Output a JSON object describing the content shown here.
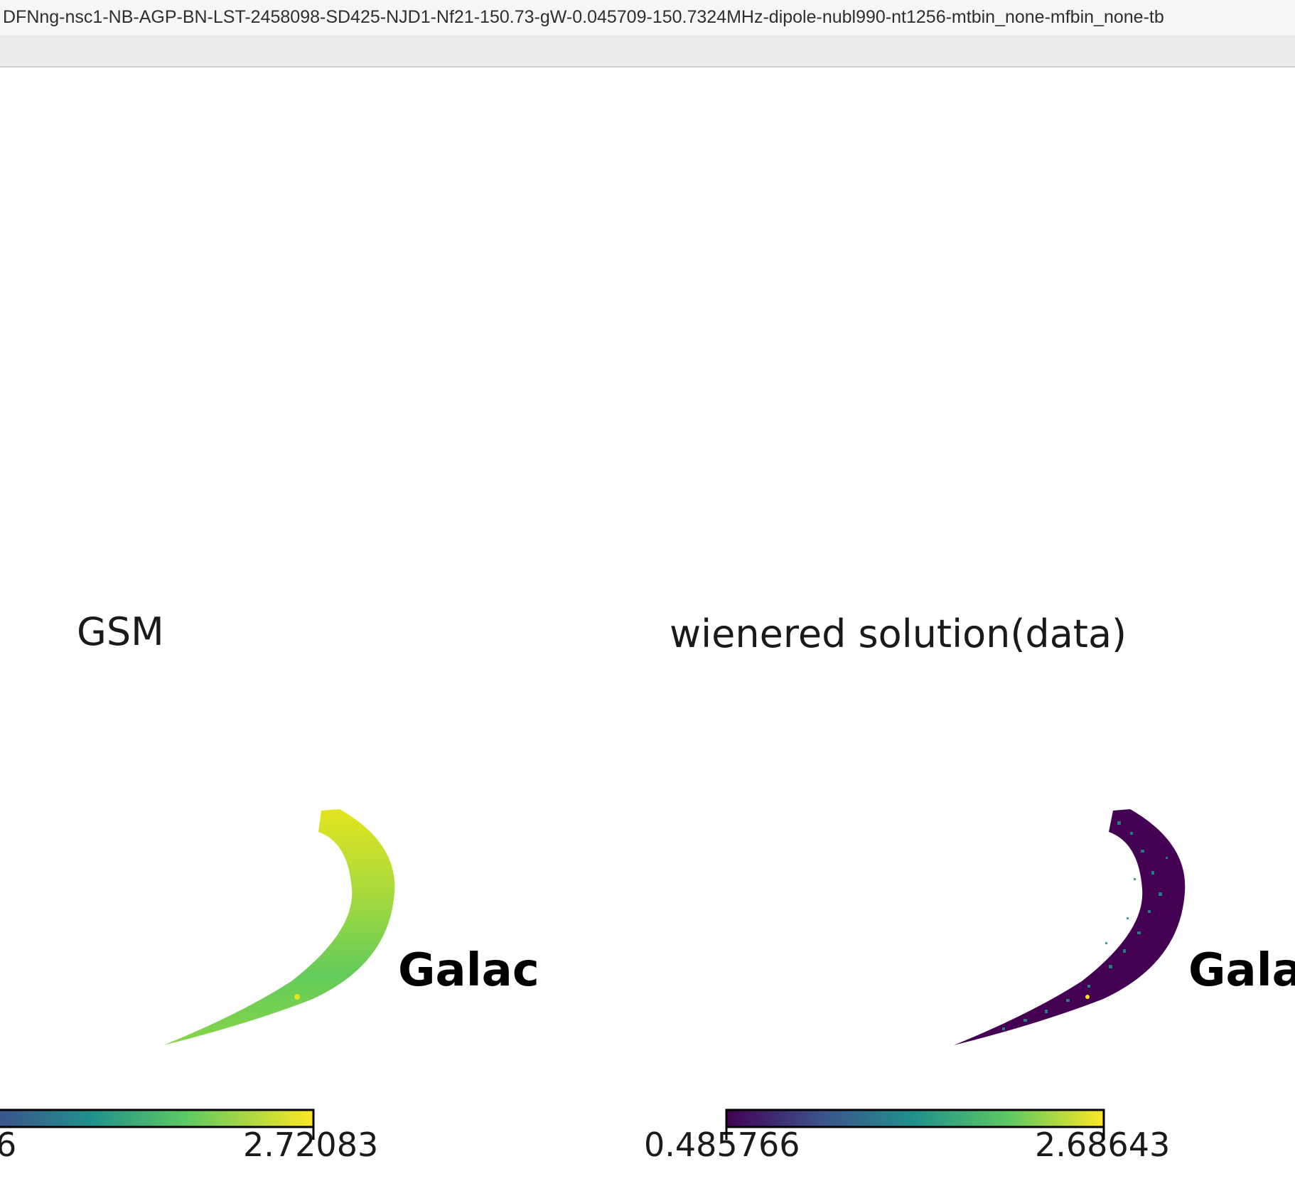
{
  "window": {
    "title": "DFNng-nsc1-NB-AGP-BN-LST-2458098-SD425-NJD1-Nf21-150.73-gW-0.045709-150.7324MHz-dipole-nubl990-nt1256-mtbin_none-mfbin_none-tb"
  },
  "panels": [
    {
      "title": "GSM",
      "overlay_text": "Galac",
      "colorbar": {
        "min_label": "6",
        "max_label": "2.72083",
        "colormap": "viridis"
      },
      "map_color": "#7fd34e"
    },
    {
      "title": "wienered solution(data)",
      "overlay_text": "Gala",
      "colorbar": {
        "min_label": "0.485766",
        "max_label": "2.68643",
        "colormap": "viridis"
      },
      "map_color": "#440154"
    }
  ]
}
